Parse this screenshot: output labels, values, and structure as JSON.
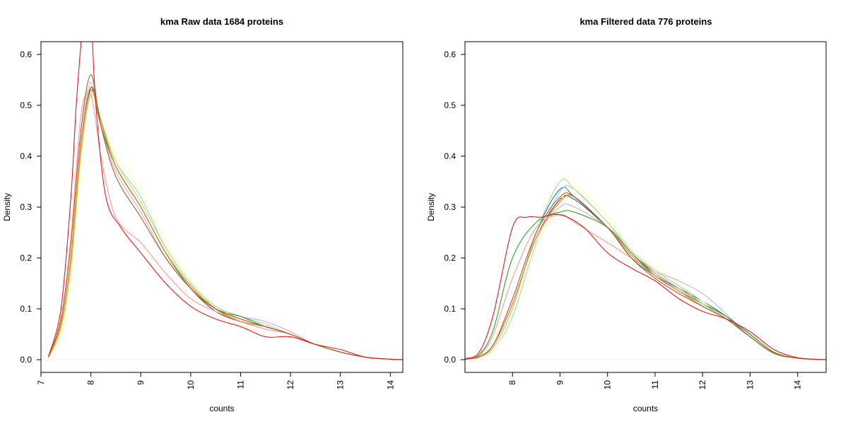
{
  "chart_data": [
    {
      "type": "line",
      "title": "kma  Raw data  1684  proteins",
      "xlabel": "counts",
      "ylabel": "Density",
      "xlim": [
        7.0,
        14.25
      ],
      "ylim": [
        -0.025,
        0.625
      ],
      "xticks": [
        "7",
        "8",
        "9",
        "10",
        "11",
        "12",
        "13",
        "14"
      ],
      "yticks": [
        "0.0",
        "0.1",
        "0.2",
        "0.3",
        "0.4",
        "0.5",
        "0.6"
      ],
      "grid": false,
      "series": [
        {
          "color": "#4a4a4a",
          "x": [
            7.15,
            7.4,
            7.6,
            7.8,
            8.0,
            8.2,
            8.5,
            9.0,
            9.5,
            10.0,
            10.5,
            11.0,
            11.5,
            12.0,
            12.5,
            13.0,
            13.5,
            14.0,
            14.25
          ],
          "y": [
            0.005,
            0.07,
            0.2,
            0.42,
            0.535,
            0.47,
            0.38,
            0.3,
            0.21,
            0.14,
            0.095,
            0.075,
            0.065,
            0.05,
            0.03,
            0.015,
            0.005,
            0.001,
            0.0
          ]
        },
        {
          "color": "#1f78b4",
          "x": [
            7.15,
            7.4,
            7.6,
            7.8,
            8.0,
            8.2,
            8.5,
            9.0,
            9.5,
            10.0,
            10.5,
            11.0,
            11.5,
            12.0,
            12.5,
            13.0,
            13.5,
            14.0,
            14.25
          ],
          "y": [
            0.005,
            0.07,
            0.2,
            0.41,
            0.53,
            0.47,
            0.38,
            0.3,
            0.21,
            0.145,
            0.1,
            0.08,
            0.065,
            0.05,
            0.03,
            0.015,
            0.005,
            0.001,
            0.0
          ]
        },
        {
          "color": "#a6cee3",
          "x": [
            7.15,
            7.4,
            7.6,
            7.8,
            8.0,
            8.2,
            8.5,
            9.0,
            9.5,
            10.0,
            10.5,
            11.0,
            11.5,
            12.0,
            12.5,
            13.0,
            13.5,
            14.0,
            14.25
          ],
          "y": [
            0.005,
            0.06,
            0.18,
            0.4,
            0.52,
            0.47,
            0.39,
            0.32,
            0.22,
            0.15,
            0.105,
            0.085,
            0.07,
            0.05,
            0.03,
            0.015,
            0.005,
            0.001,
            0.0
          ]
        },
        {
          "color": "#ffff99",
          "x": [
            7.15,
            7.4,
            7.6,
            7.8,
            8.0,
            8.2,
            8.5,
            9.0,
            9.5,
            10.0,
            10.5,
            11.0,
            11.5,
            12.0,
            12.5,
            13.0,
            13.5,
            14.0,
            14.25
          ],
          "y": [
            0.004,
            0.05,
            0.16,
            0.38,
            0.515,
            0.47,
            0.4,
            0.33,
            0.23,
            0.155,
            0.1,
            0.08,
            0.065,
            0.05,
            0.03,
            0.015,
            0.005,
            0.001,
            0.0
          ]
        },
        {
          "color": "#cab2d6",
          "x": [
            7.15,
            7.4,
            7.6,
            7.8,
            8.0,
            8.2,
            8.5,
            9.0,
            9.5,
            10.0,
            10.5,
            11.0,
            11.5,
            12.0,
            12.5,
            13.0,
            13.5,
            14.0,
            14.25
          ],
          "y": [
            0.005,
            0.07,
            0.2,
            0.43,
            0.545,
            0.46,
            0.37,
            0.29,
            0.2,
            0.14,
            0.1,
            0.085,
            0.075,
            0.055,
            0.03,
            0.015,
            0.005,
            0.001,
            0.0
          ]
        },
        {
          "color": "#fb9a99",
          "x": [
            7.15,
            7.4,
            7.6,
            7.8,
            8.0,
            8.2,
            8.5,
            9.0,
            9.5,
            10.0,
            10.5,
            11.0,
            11.5,
            12.0,
            12.5,
            13.0,
            13.5,
            14.0,
            14.25
          ],
          "y": [
            0.006,
            0.08,
            0.24,
            0.48,
            0.52,
            0.4,
            0.28,
            0.23,
            0.17,
            0.12,
            0.095,
            0.075,
            0.06,
            0.05,
            0.03,
            0.015,
            0.005,
            0.001,
            0.0
          ]
        },
        {
          "color": "#33a02c",
          "x": [
            7.15,
            7.4,
            7.6,
            7.8,
            8.0,
            8.2,
            8.5,
            9.0,
            9.5,
            10.0,
            10.5,
            11.0,
            11.5,
            12.0,
            12.5,
            13.0,
            13.5,
            14.0,
            14.25
          ],
          "y": [
            0.005,
            0.07,
            0.2,
            0.42,
            0.53,
            0.46,
            0.38,
            0.3,
            0.21,
            0.14,
            0.1,
            0.085,
            0.065,
            0.05,
            0.03,
            0.015,
            0.005,
            0.001,
            0.0
          ]
        },
        {
          "color": "#b2df8a",
          "x": [
            7.15,
            7.4,
            7.6,
            7.8,
            8.0,
            8.2,
            8.5,
            9.0,
            9.5,
            10.0,
            10.5,
            11.0,
            11.5,
            12.0,
            12.5,
            13.0,
            13.5,
            14.0,
            14.25
          ],
          "y": [
            0.005,
            0.06,
            0.18,
            0.41,
            0.525,
            0.47,
            0.39,
            0.31,
            0.22,
            0.15,
            0.105,
            0.08,
            0.065,
            0.05,
            0.03,
            0.015,
            0.005,
            0.001,
            0.0
          ]
        },
        {
          "color": "#ff7f00",
          "x": [
            7.15,
            7.4,
            7.6,
            7.8,
            8.0,
            8.2,
            8.5,
            9.0,
            9.5,
            10.0,
            10.5,
            11.0,
            11.5,
            12.0,
            12.5,
            13.0,
            13.5,
            14.0,
            14.25
          ],
          "y": [
            0.005,
            0.07,
            0.2,
            0.42,
            0.53,
            0.47,
            0.38,
            0.3,
            0.21,
            0.145,
            0.1,
            0.075,
            0.065,
            0.05,
            0.03,
            0.015,
            0.005,
            0.001,
            0.0
          ]
        },
        {
          "color": "#b15928",
          "x": [
            7.15,
            7.4,
            7.6,
            7.8,
            8.0,
            8.2,
            8.5,
            9.0,
            9.5,
            10.0,
            10.5,
            11.0,
            11.5,
            12.0,
            12.5,
            13.0,
            13.5,
            14.0,
            14.25
          ],
          "y": [
            0.006,
            0.08,
            0.23,
            0.45,
            0.56,
            0.46,
            0.36,
            0.28,
            0.2,
            0.14,
            0.1,
            0.08,
            0.065,
            0.05,
            0.03,
            0.015,
            0.005,
            0.001,
            0.0
          ]
        },
        {
          "color": "#e31a1c",
          "x": [
            7.15,
            7.4,
            7.6,
            7.7,
            7.8,
            7.9,
            8.0,
            8.1,
            8.3,
            8.6,
            9.0,
            9.5,
            10.0,
            10.5,
            11.0,
            11.5,
            12.0,
            12.5,
            13.0,
            13.5,
            14.0,
            14.25
          ],
          "y": [
            0.006,
            0.1,
            0.32,
            0.49,
            0.62,
            0.72,
            0.68,
            0.5,
            0.32,
            0.26,
            0.21,
            0.15,
            0.105,
            0.08,
            0.065,
            0.045,
            0.045,
            0.03,
            0.02,
            0.005,
            0.001,
            0.0
          ]
        }
      ]
    },
    {
      "type": "line",
      "title": "kma  Filtered data 776  proteins",
      "xlabel": "counts",
      "ylabel": "Density",
      "xlim": [
        7.0,
        14.6
      ],
      "ylim": [
        -0.025,
        0.625
      ],
      "xticks": [
        "8",
        "9",
        "10",
        "11",
        "12",
        "13",
        "14"
      ],
      "yticks": [
        "0.0",
        "0.1",
        "0.2",
        "0.3",
        "0.4",
        "0.5",
        "0.6"
      ],
      "grid": false,
      "series": [
        {
          "color": "#4a4a4a",
          "x": [
            7.0,
            7.3,
            7.6,
            8.0,
            8.5,
            9.0,
            9.3,
            10.0,
            10.5,
            11.0,
            11.5,
            12.0,
            12.5,
            13.0,
            13.5,
            14.0,
            14.6
          ],
          "y": [
            0.001,
            0.006,
            0.03,
            0.11,
            0.24,
            0.315,
            0.315,
            0.26,
            0.21,
            0.17,
            0.14,
            0.11,
            0.085,
            0.05,
            0.015,
            0.003,
            0.0
          ]
        },
        {
          "color": "#1f78b4",
          "x": [
            7.0,
            7.3,
            7.6,
            8.0,
            8.5,
            9.0,
            9.3,
            10.0,
            10.5,
            11.0,
            11.5,
            12.0,
            12.5,
            13.0,
            13.5,
            14.0,
            14.6
          ],
          "y": [
            0.001,
            0.005,
            0.025,
            0.1,
            0.25,
            0.335,
            0.32,
            0.26,
            0.2,
            0.165,
            0.14,
            0.115,
            0.085,
            0.045,
            0.013,
            0.003,
            0.0
          ]
        },
        {
          "color": "#a6cee3",
          "x": [
            7.0,
            7.3,
            7.6,
            8.0,
            8.5,
            9.0,
            9.3,
            10.0,
            10.5,
            11.0,
            11.5,
            12.0,
            12.5,
            13.0,
            13.5,
            14.0,
            14.6
          ],
          "y": [
            0.001,
            0.004,
            0.02,
            0.085,
            0.23,
            0.33,
            0.335,
            0.27,
            0.21,
            0.175,
            0.145,
            0.115,
            0.08,
            0.045,
            0.012,
            0.003,
            0.0
          ]
        },
        {
          "color": "#ffff99",
          "x": [
            7.0,
            7.3,
            7.6,
            8.0,
            8.5,
            9.0,
            9.3,
            10.0,
            10.5,
            11.0,
            11.5,
            12.0,
            12.5,
            13.0,
            13.5,
            14.0,
            14.6
          ],
          "y": [
            0.001,
            0.004,
            0.02,
            0.08,
            0.22,
            0.31,
            0.34,
            0.28,
            0.215,
            0.18,
            0.15,
            0.115,
            0.08,
            0.045,
            0.012,
            0.003,
            0.0
          ]
        },
        {
          "color": "#cab2d6",
          "x": [
            7.0,
            7.3,
            7.6,
            8.0,
            8.5,
            9.0,
            9.3,
            10.0,
            10.5,
            11.0,
            11.5,
            12.0,
            12.5,
            13.0,
            13.5,
            14.0,
            14.6
          ],
          "y": [
            0.001,
            0.006,
            0.03,
            0.11,
            0.24,
            0.3,
            0.3,
            0.26,
            0.21,
            0.175,
            0.155,
            0.13,
            0.09,
            0.045,
            0.013,
            0.003,
            0.0
          ]
        },
        {
          "color": "#fb9a99",
          "x": [
            7.0,
            7.3,
            7.6,
            8.0,
            8.5,
            9.0,
            9.3,
            10.0,
            10.5,
            11.0,
            11.5,
            12.0,
            12.5,
            13.0,
            13.5,
            14.0,
            14.6
          ],
          "y": [
            0.001,
            0.008,
            0.05,
            0.16,
            0.26,
            0.285,
            0.27,
            0.23,
            0.2,
            0.17,
            0.14,
            0.11,
            0.08,
            0.045,
            0.013,
            0.003,
            0.0
          ]
        },
        {
          "color": "#33a02c",
          "x": [
            7.0,
            7.3,
            7.6,
            8.0,
            8.5,
            9.0,
            9.3,
            10.0,
            10.5,
            11.0,
            11.5,
            12.0,
            12.5,
            13.0,
            13.5,
            14.0,
            14.6
          ],
          "y": [
            0.001,
            0.01,
            0.06,
            0.2,
            0.27,
            0.29,
            0.29,
            0.26,
            0.21,
            0.165,
            0.135,
            0.11,
            0.085,
            0.05,
            0.015,
            0.003,
            0.0
          ]
        },
        {
          "color": "#b2df8a",
          "x": [
            7.0,
            7.3,
            7.6,
            8.0,
            8.5,
            9.0,
            9.3,
            10.0,
            10.5,
            11.0,
            11.5,
            12.0,
            12.5,
            13.0,
            13.5,
            14.0,
            14.6
          ],
          "y": [
            0.001,
            0.005,
            0.025,
            0.1,
            0.25,
            0.35,
            0.335,
            0.27,
            0.215,
            0.175,
            0.145,
            0.11,
            0.08,
            0.045,
            0.012,
            0.003,
            0.0
          ]
        },
        {
          "color": "#ff7f00",
          "x": [
            7.0,
            7.3,
            7.6,
            8.0,
            8.5,
            9.0,
            9.3,
            10.0,
            10.5,
            11.0,
            11.5,
            12.0,
            12.5,
            13.0,
            13.5,
            14.0,
            14.6
          ],
          "y": [
            0.001,
            0.006,
            0.03,
            0.11,
            0.24,
            0.31,
            0.32,
            0.26,
            0.205,
            0.165,
            0.135,
            0.105,
            0.08,
            0.045,
            0.013,
            0.003,
            0.0
          ]
        },
        {
          "color": "#b15928",
          "x": [
            7.0,
            7.3,
            7.6,
            8.0,
            8.5,
            9.0,
            9.3,
            10.0,
            10.5,
            11.0,
            11.5,
            12.0,
            12.5,
            13.0,
            13.5,
            14.0,
            14.6
          ],
          "y": [
            0.001,
            0.006,
            0.03,
            0.12,
            0.25,
            0.32,
            0.32,
            0.26,
            0.2,
            0.16,
            0.13,
            0.105,
            0.08,
            0.045,
            0.013,
            0.003,
            0.0
          ]
        },
        {
          "color": "#e31a1c",
          "x": [
            7.0,
            7.3,
            7.6,
            8.0,
            8.3,
            8.6,
            9.0,
            9.5,
            10.0,
            10.5,
            11.0,
            11.5,
            12.0,
            12.5,
            13.0,
            13.5,
            14.0,
            14.6
          ],
          "y": [
            0.002,
            0.015,
            0.09,
            0.26,
            0.28,
            0.28,
            0.285,
            0.26,
            0.21,
            0.18,
            0.155,
            0.12,
            0.095,
            0.08,
            0.055,
            0.02,
            0.004,
            0.0
          ]
        }
      ]
    }
  ]
}
